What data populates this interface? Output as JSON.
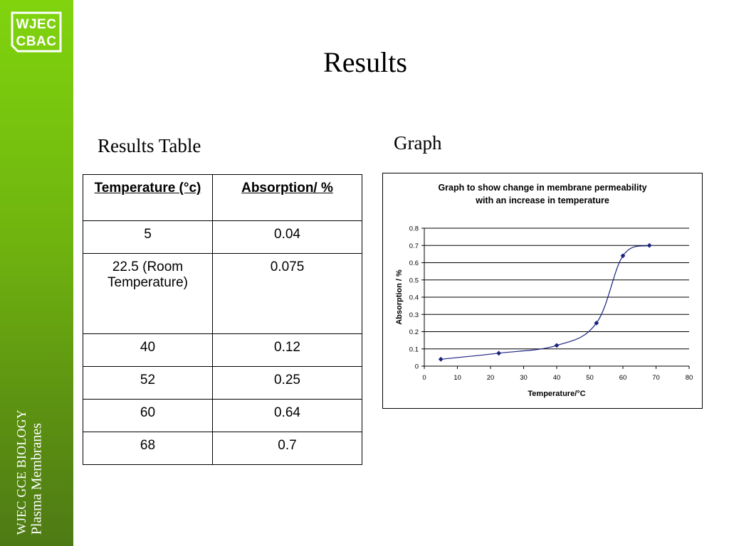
{
  "branding": {
    "logo_line1": "WJEC",
    "logo_line2": "CBAC",
    "course": "WJEC GCE BIOLOGY",
    "topic": "Plasma Membranes"
  },
  "slide": {
    "title": "Results",
    "table_heading": "Results Table",
    "graph_heading": "Graph"
  },
  "table": {
    "headers": [
      "Temperature (°c)",
      "Absorption/ %"
    ],
    "rows": [
      [
        "5",
        "0.04"
      ],
      [
        "22.5 (Room Temperature)",
        "0.075"
      ],
      [
        "40",
        "0.12"
      ],
      [
        "52",
        "0.25"
      ],
      [
        "60",
        "0.64"
      ],
      [
        "68",
        "0.7"
      ]
    ]
  },
  "chart_data": {
    "type": "line",
    "title_line1": "Graph to show change in membrane permeability",
    "title_line2": "with an increase in temperature",
    "xlabel": "Temperature/°C",
    "ylabel": "Absorption / %",
    "xlim": [
      0,
      80
    ],
    "ylim": [
      0,
      0.8
    ],
    "xticks": [
      "0",
      "10",
      "20",
      "30",
      "40",
      "50",
      "60",
      "70",
      "80"
    ],
    "yticks": [
      "0",
      "0.1",
      "0.2",
      "0.3",
      "0.4",
      "0.5",
      "0.6",
      "0.7",
      "0.8"
    ],
    "grid": "horizontal",
    "legend": "none",
    "series": [
      {
        "x": [
          5,
          22.5,
          40,
          52,
          60,
          68
        ],
        "y": [
          0.04,
          0.075,
          0.12,
          0.25,
          0.64,
          0.7
        ],
        "color": "#1a237e",
        "marker": "diamond"
      }
    ]
  }
}
